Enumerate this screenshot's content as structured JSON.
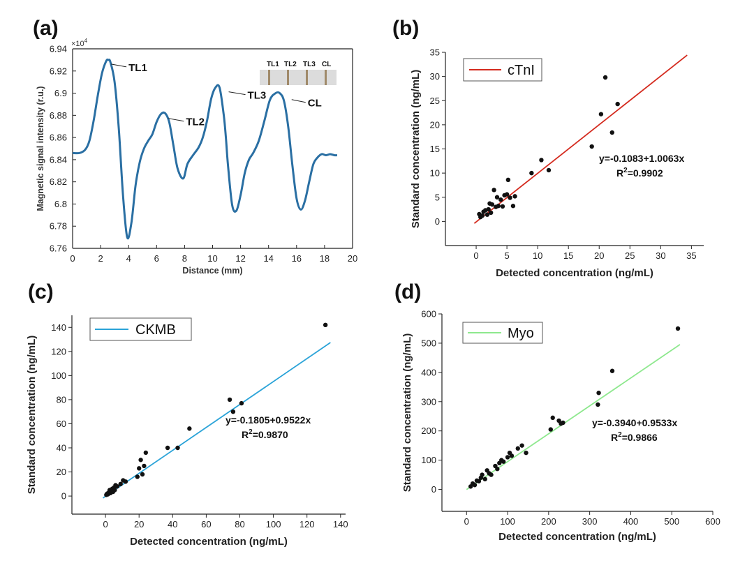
{
  "chart_data": [
    {
      "id": "a",
      "panel_label": "(a)",
      "type": "line",
      "xlabel": "Distance (mm)",
      "ylabel": "Magnetic signal intensity (r.u.)",
      "y_multiplier": "×10",
      "y_multiplier_exp": "4",
      "xlim": [
        0,
        20
      ],
      "ylim": [
        6.76,
        6.94
      ],
      "xticks": [
        "0",
        "2",
        "4",
        "6",
        "8",
        "10",
        "12",
        "14",
        "16",
        "18",
        "20"
      ],
      "yticks": [
        "6.76",
        "6.78",
        "6.8",
        "6.82",
        "6.84",
        "6.86",
        "6.88",
        "6.9",
        "6.92",
        "6.94"
      ],
      "color": "#2a6fa3",
      "series": [
        {
          "x": [
            0,
            0.5,
            0.9,
            1.2,
            1.5,
            1.8,
            2.1,
            2.4,
            2.55,
            2.7,
            3.0,
            3.3,
            3.6,
            3.9,
            4.2,
            4.5,
            4.8,
            5.1,
            5.4,
            5.7,
            6.0,
            6.3,
            6.6,
            6.9,
            7.2,
            7.5,
            7.9,
            8.2,
            8.6,
            9.0,
            9.3,
            9.6,
            9.9,
            10.2,
            10.5,
            10.8,
            10.95,
            11.1,
            11.4,
            11.7,
            12.0,
            12.3,
            12.6,
            12.9,
            13.3,
            13.7,
            14.1,
            14.5,
            14.8,
            15.1,
            15.4,
            15.7,
            16.0,
            16.3,
            16.6,
            16.9,
            17.2,
            17.5,
            17.8,
            18.1,
            18.4,
            18.7,
            18.9
          ],
          "y": [
            6.846,
            6.846,
            6.849,
            6.857,
            6.875,
            6.898,
            6.918,
            6.929,
            6.93,
            6.928,
            6.91,
            6.868,
            6.808,
            6.77,
            6.783,
            6.817,
            6.838,
            6.85,
            6.857,
            6.863,
            6.874,
            6.881,
            6.882,
            6.874,
            6.853,
            6.832,
            6.823,
            6.836,
            6.844,
            6.851,
            6.86,
            6.875,
            6.895,
            6.905,
            6.905,
            6.88,
            6.86,
            6.835,
            6.799,
            6.794,
            6.808,
            6.828,
            6.84,
            6.846,
            6.857,
            6.875,
            6.894,
            6.9,
            6.9,
            6.893,
            6.87,
            6.835,
            6.805,
            6.795,
            6.803,
            6.82,
            6.836,
            6.842,
            6.845,
            6.844,
            6.845,
            6.844,
            6.844
          ]
        }
      ],
      "peak_labels": [
        {
          "text": "TL1",
          "x": 2.6,
          "y": 6.93
        },
        {
          "text": "TL2",
          "x": 6.7,
          "y": 6.881
        },
        {
          "text": "TL3",
          "x": 11.0,
          "y": 6.905
        },
        {
          "text": "CL",
          "x": 15.5,
          "y": 6.898
        }
      ],
      "inset_labels": [
        "TL1",
        "TL2",
        "TL3",
        "CL"
      ]
    },
    {
      "id": "b",
      "panel_label": "(b)",
      "type": "scatter",
      "xlabel": "Detected concentration (ng/mL)",
      "ylabel": "Standard concentration (ng/mL)",
      "xlim": [
        -5,
        37
      ],
      "ylim": [
        -5,
        35
      ],
      "xticks": [
        "0",
        "5",
        "10",
        "15",
        "20",
        "25",
        "30",
        "35"
      ],
      "yticks": [
        "0",
        "5",
        "10",
        "15",
        "20",
        "25",
        "30",
        "35"
      ],
      "legend": "cTnI",
      "legend_position": "top-left",
      "line_color": "#d42a1e",
      "fit": {
        "intercept": -0.1083,
        "slope": 1.0063,
        "x_range": [
          -0.3,
          34.3
        ]
      },
      "equation": "y=-0.1083+1.0063x",
      "r2_prefix": "R",
      "r2_exp": "2",
      "r2_value": "=0.9902",
      "points": [
        [
          0.5,
          1.5
        ],
        [
          0.7,
          0.9
        ],
        [
          1.0,
          1.2
        ],
        [
          1.2,
          2.0
        ],
        [
          1.5,
          2.3
        ],
        [
          1.8,
          1.4
        ],
        [
          2.0,
          2.5
        ],
        [
          2.2,
          3.7
        ],
        [
          2.4,
          1.8
        ],
        [
          2.6,
          3.5
        ],
        [
          2.9,
          6.5
        ],
        [
          3.2,
          3.0
        ],
        [
          3.4,
          5.0
        ],
        [
          3.6,
          3.2
        ],
        [
          4.0,
          4.5
        ],
        [
          4.3,
          3.1
        ],
        [
          4.6,
          5.4
        ],
        [
          5.0,
          5.6
        ],
        [
          5.2,
          8.6
        ],
        [
          5.5,
          4.9
        ],
        [
          6.0,
          3.2
        ],
        [
          6.3,
          5.2
        ],
        [
          9.0,
          10.0
        ],
        [
          10.6,
          12.7
        ],
        [
          11.8,
          10.6
        ],
        [
          18.8,
          15.5
        ],
        [
          20.3,
          22.2
        ],
        [
          21.0,
          29.8
        ],
        [
          22.1,
          18.4
        ],
        [
          23.0,
          24.3
        ]
      ]
    },
    {
      "id": "c",
      "panel_label": "(c)",
      "type": "scatter",
      "xlabel": "Detected concentration (ng/mL)",
      "ylabel": "Standard concentration (ng/mL)",
      "xlim": [
        -20,
        143
      ],
      "ylim": [
        -15,
        150
      ],
      "xticks": [
        "0",
        "20",
        "40",
        "60",
        "80",
        "100",
        "120",
        "140"
      ],
      "yticks": [
        "0",
        "20",
        "40",
        "60",
        "80",
        "100",
        "120",
        "140"
      ],
      "legend": "CKMB",
      "legend_position": "top-left",
      "line_color": "#2aa3d8",
      "fit": {
        "intercept": -0.1805,
        "slope": 0.9522,
        "x_range": [
          -1.5,
          134
        ]
      },
      "equation": "y=-0.1805+0.9522x",
      "r2_prefix": "R",
      "r2_exp": "2",
      "r2_value": "=0.9870",
      "points": [
        [
          0.5,
          1.0
        ],
        [
          1.0,
          2.0
        ],
        [
          1.5,
          1.5
        ],
        [
          2.0,
          3.0
        ],
        [
          2.5,
          5.0
        ],
        [
          3.0,
          2.5
        ],
        [
          3.5,
          4.0
        ],
        [
          4.0,
          6.0
        ],
        [
          4.5,
          3.5
        ],
        [
          5.0,
          7.0
        ],
        [
          5.5,
          5.0
        ],
        [
          6.0,
          9.0
        ],
        [
          7.0,
          8.0
        ],
        [
          9.0,
          10.0
        ],
        [
          10.5,
          13.0
        ],
        [
          12.0,
          12.0
        ],
        [
          19.0,
          16.0
        ],
        [
          20.0,
          23.0
        ],
        [
          21.0,
          30.0
        ],
        [
          22.0,
          18.0
        ],
        [
          23.0,
          25.0
        ],
        [
          24.0,
          36.0
        ],
        [
          37.0,
          40.0
        ],
        [
          43.0,
          40.0
        ],
        [
          50.0,
          56.0
        ],
        [
          74.0,
          80.0
        ],
        [
          76.0,
          70.0
        ],
        [
          81.0,
          77.0
        ],
        [
          131.0,
          142.0
        ]
      ]
    },
    {
      "id": "d",
      "panel_label": "(d)",
      "type": "scatter",
      "xlabel": "Detected concentration (ng/mL)",
      "ylabel": "Standard concentration (ng/mL)",
      "xlim": [
        -60,
        600
      ],
      "ylim": [
        -75,
        600
      ],
      "xticks": [
        "0",
        "100",
        "200",
        "300",
        "400",
        "500",
        "600"
      ],
      "yticks": [
        "0",
        "100",
        "200",
        "300",
        "400",
        "500",
        "600"
      ],
      "legend": "Myo",
      "legend_position": "top-left",
      "line_color": "#8ee88e",
      "fit": {
        "intercept": -0.394,
        "slope": 0.9533,
        "x_range": [
          0,
          520
        ]
      },
      "equation": "y=-0.3940+0.9533x",
      "r2_prefix": "R",
      "r2_exp": "2",
      "r2_value": "=0.9866",
      "points": [
        [
          10,
          10
        ],
        [
          15,
          20
        ],
        [
          20,
          15
        ],
        [
          25,
          30
        ],
        [
          30,
          28
        ],
        [
          35,
          40
        ],
        [
          38,
          50
        ],
        [
          45,
          35
        ],
        [
          50,
          65
        ],
        [
          55,
          55
        ],
        [
          60,
          50
        ],
        [
          70,
          80
        ],
        [
          75,
          70
        ],
        [
          80,
          90
        ],
        [
          85,
          100
        ],
        [
          90,
          95
        ],
        [
          100,
          110
        ],
        [
          105,
          125
        ],
        [
          110,
          115
        ],
        [
          125,
          140
        ],
        [
          135,
          150
        ],
        [
          145,
          125
        ],
        [
          205,
          205
        ],
        [
          210,
          245
        ],
        [
          225,
          235
        ],
        [
          230,
          225
        ],
        [
          235,
          228
        ],
        [
          320,
          290
        ],
        [
          322,
          330
        ],
        [
          355,
          405
        ],
        [
          515,
          550
        ]
      ]
    }
  ]
}
